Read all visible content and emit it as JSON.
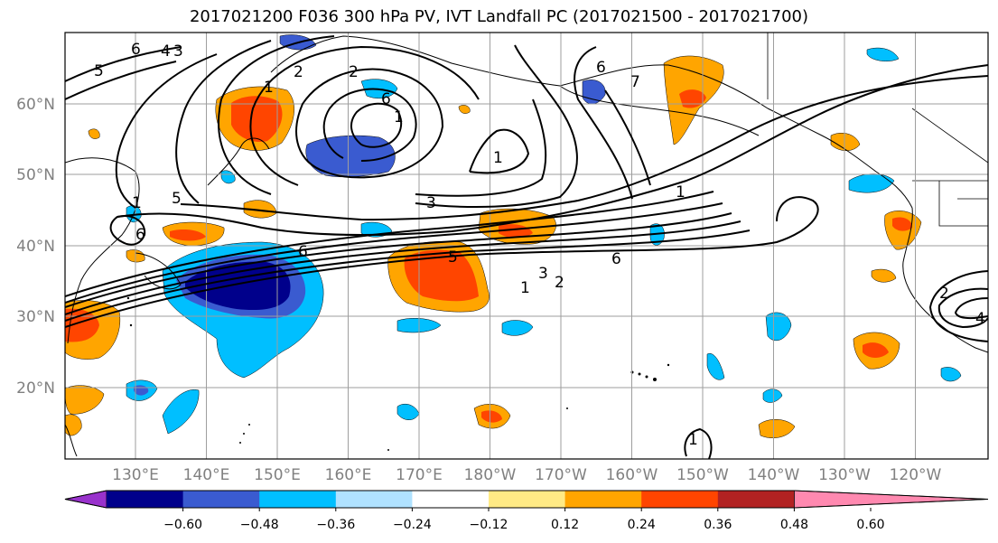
{
  "title": "2017021200 F036 300 hPa PV, IVT Landfall PC (2017021500 - 2017021700)",
  "map": {
    "lat_labels": [
      "60°N",
      "50°N",
      "40°N",
      "30°N",
      "20°N"
    ],
    "lon_labels": [
      "130°E",
      "140°E",
      "150°E",
      "160°E",
      "170°E",
      "180°W",
      "170°W",
      "160°W",
      "150°W",
      "140°W",
      "130°W",
      "120°W"
    ],
    "contour_labels": [
      "5",
      "6",
      "4",
      "3",
      "2",
      "1",
      "2",
      "6",
      "3",
      "5",
      "6",
      "5",
      "3",
      "2",
      "1",
      "6",
      "1",
      "7",
      "1",
      "2",
      "4",
      "1",
      "6",
      "1",
      "6",
      "1"
    ]
  },
  "colorbar": {
    "colors": [
      "#9932cc",
      "#00008b",
      "#3a5bd0",
      "#00bfff",
      "#b0e2ff",
      "#ffffff",
      "#ffea85",
      "#ffa500",
      "#ff4500",
      "#b22222",
      "#ff89b0"
    ],
    "ticks": [
      "−0.60",
      "−0.48",
      "−0.36",
      "−0.24",
      "−0.12",
      "0.12",
      "0.24",
      "0.36",
      "0.48",
      "0.60"
    ]
  }
}
